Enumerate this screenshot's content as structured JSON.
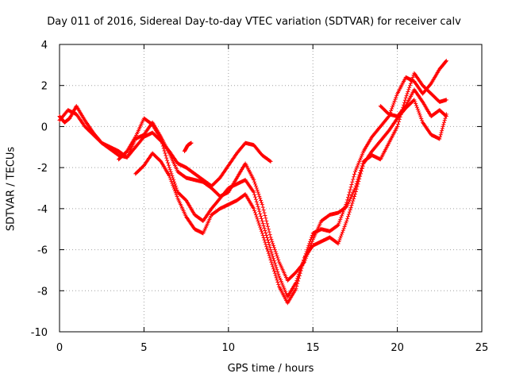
{
  "chart_data": {
    "type": "scatter",
    "title": "Day 011 of 2016, Sidereal Day-to-day VTEC variation (SDTVAR) for receiver calv",
    "xlabel": "GPS time / hours",
    "ylabel": "SDTVAR / TECUs",
    "xlim": [
      0,
      25
    ],
    "ylim": [
      -10,
      4
    ],
    "xticks": [
      0,
      5,
      10,
      15,
      20,
      25
    ],
    "yticks": [
      -10,
      -8,
      -6,
      -4,
      -2,
      0,
      2,
      4
    ],
    "grid": true,
    "marker": "+",
    "color": "#ff0000",
    "series": [
      {
        "x": [
          0.0,
          0.3,
          0.6,
          1.0,
          1.5,
          2.0,
          2.5,
          3.0,
          3.5,
          4.0,
          4.5,
          5.0,
          5.5,
          6.0,
          6.5,
          7.0,
          7.5,
          8.0,
          8.5,
          9.0,
          9.5,
          10.0,
          10.5,
          11.0,
          11.5,
          12.0,
          12.5,
          13.0,
          13.5,
          14.0,
          14.5,
          15.0,
          15.5,
          16.0,
          16.5,
          17.0,
          17.5,
          18.0,
          18.5,
          19.0,
          19.5,
          20.0,
          20.5,
          21.0,
          21.5,
          22.0,
          22.5,
          22.9
        ],
        "y": [
          0.5,
          0.2,
          0.4,
          1.0,
          0.3,
          -0.3,
          -0.8,
          -1.1,
          -1.4,
          -1.5,
          -0.6,
          -0.4,
          0.2,
          -0.5,
          -1.3,
          -2.2,
          -2.5,
          -2.6,
          -2.7,
          -3.0,
          -3.4,
          -3.2,
          -2.5,
          -1.8,
          -2.6,
          -3.8,
          -5.4,
          -6.6,
          -7.5,
          -7.1,
          -6.6,
          -5.5,
          -4.6,
          -4.3,
          -4.2,
          -3.9,
          -3.0,
          -1.7,
          -1.4,
          -1.6,
          -0.8,
          0.0,
          1.4,
          2.6,
          2.0,
          1.6,
          1.2,
          1.3
        ]
      },
      {
        "x": [
          0.0,
          0.5,
          1.0,
          1.5,
          2.0,
          2.5,
          3.0,
          3.5,
          4.0,
          4.5,
          5.0,
          5.5,
          6.0,
          6.5,
          7.0,
          7.5,
          8.0,
          8.5,
          9.0,
          9.5,
          10.0,
          10.5,
          11.0,
          11.5,
          12.0,
          12.5
        ],
        "y": [
          0.3,
          0.8,
          0.6,
          0.0,
          -0.4,
          -0.8,
          -1.0,
          -1.2,
          -1.5,
          -1.0,
          -0.5,
          -0.3,
          -0.7,
          -1.2,
          -1.8,
          -2.0,
          -2.3,
          -2.6,
          -2.9,
          -2.5,
          -1.9,
          -1.3,
          -0.8,
          -0.9,
          -1.4,
          -1.7
        ]
      },
      {
        "x": [
          3.5,
          4.0,
          4.5,
          5.0,
          5.5,
          6.0,
          6.5,
          7.0,
          7.5,
          8.0,
          8.5,
          9.0,
          9.5,
          10.0,
          10.5,
          11.0,
          11.5,
          12.0,
          12.5,
          13.0,
          13.5,
          14.0,
          14.5,
          15.0,
          15.5,
          16.0,
          16.5,
          17.0,
          17.5,
          18.0,
          18.5,
          19.0,
          19.5,
          20.0,
          20.5,
          21.0,
          21.5,
          22.0,
          22.5,
          22.9
        ],
        "y": [
          -1.6,
          -1.2,
          -0.5,
          0.4,
          0.1,
          -0.6,
          -2.0,
          -3.2,
          -3.6,
          -4.3,
          -4.6,
          -4.0,
          -3.5,
          -3.0,
          -2.8,
          -2.6,
          -3.2,
          -4.6,
          -6.0,
          -7.3,
          -8.3,
          -7.6,
          -6.4,
          -5.2,
          -5.0,
          -5.1,
          -4.8,
          -3.7,
          -2.2,
          -1.2,
          -0.5,
          0.0,
          0.5,
          1.6,
          2.4,
          2.2,
          1.6,
          2.1,
          2.8,
          3.2
        ]
      },
      {
        "x": [
          4.5,
          5.0,
          5.5,
          6.0,
          6.5,
          7.0,
          7.5,
          8.0,
          8.5,
          9.0,
          9.5,
          10.0,
          10.5,
          11.0,
          11.5,
          12.0,
          12.5,
          13.0,
          13.5,
          14.0,
          14.5,
          15.0,
          15.5,
          16.0,
          16.5,
          17.0,
          17.5,
          18.0,
          18.5,
          19.0,
          19.5,
          20.0,
          20.5,
          21.0,
          21.5,
          22.0,
          22.5,
          22.9
        ],
        "y": [
          -2.3,
          -1.9,
          -1.3,
          -1.7,
          -2.4,
          -3.5,
          -4.4,
          -5.0,
          -5.2,
          -4.3,
          -4.0,
          -3.8,
          -3.6,
          -3.3,
          -4.0,
          -5.2,
          -6.5,
          -7.8,
          -8.6,
          -7.9,
          -6.4,
          -5.8,
          -5.6,
          -5.4,
          -5.7,
          -4.6,
          -3.3,
          -1.8,
          -1.2,
          -0.7,
          -0.2,
          0.4,
          0.9,
          1.3,
          0.2,
          -0.4,
          -0.6,
          0.6
        ]
      },
      {
        "x": [
          19.0,
          19.5,
          20.0,
          20.5,
          21.0,
          21.5,
          22.0,
          22.5,
          22.9
        ],
        "y": [
          1.0,
          0.6,
          0.5,
          1.0,
          1.8,
          1.2,
          0.5,
          0.8,
          0.5
        ]
      },
      {
        "x": [
          7.4,
          7.6,
          7.8
        ],
        "y": [
          -1.2,
          -0.9,
          -0.8
        ]
      }
    ]
  }
}
